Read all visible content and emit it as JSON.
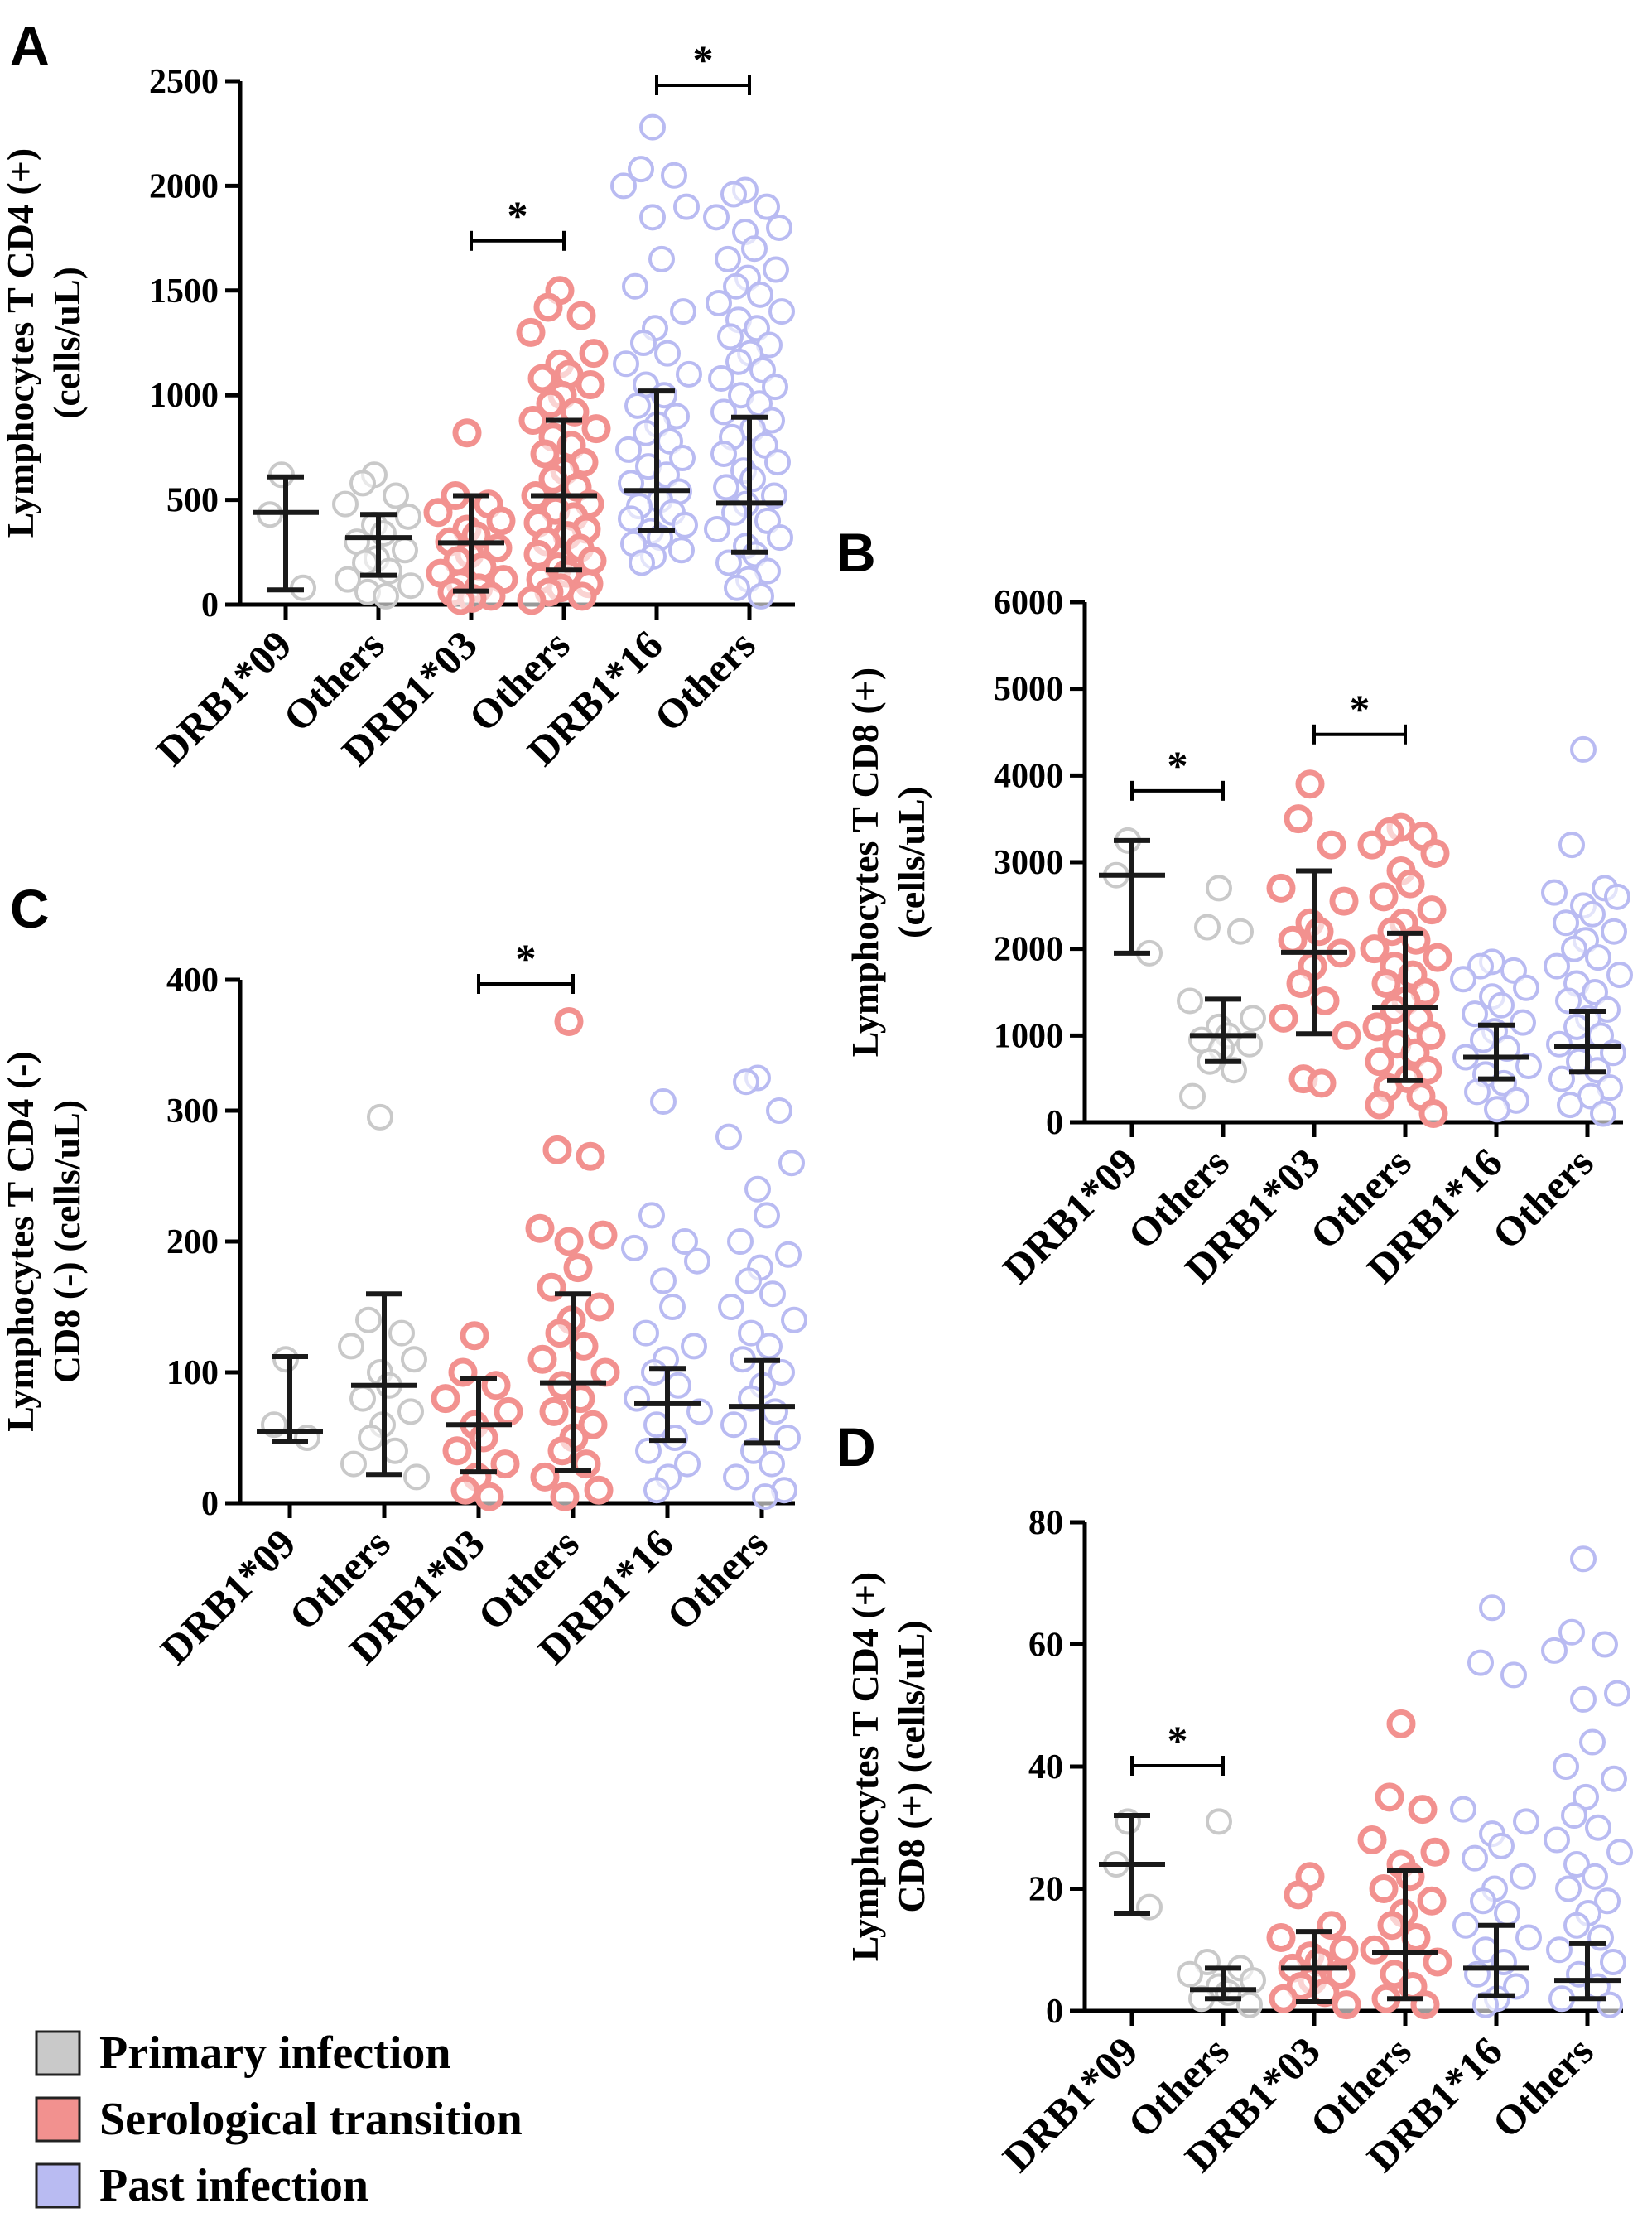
{
  "chart_data": [
    {
      "panel": "A",
      "type": "scatter",
      "ylabel_lines": [
        "Lymphocytes T CD4 (+)",
        "(cells/uL)"
      ],
      "ylim": [
        0,
        2500
      ],
      "yticks": [
        0,
        500,
        1000,
        1500,
        2000,
        2500
      ],
      "categories": [
        "DRB1*09",
        "Others",
        "DRB1*03",
        "Others",
        "DRB1*16",
        "Others"
      ],
      "groups": [
        "Primary infection",
        "Primary infection",
        "Serological transition",
        "Serological transition",
        "Past infection",
        "Past infection"
      ],
      "points": [
        [
          620,
          430,
          80
        ],
        [
          620,
          580,
          520,
          480,
          420,
          380,
          340,
          300,
          260,
          220,
          200,
          160,
          120,
          90,
          60,
          40
        ],
        [
          820,
          520,
          480,
          440,
          400,
          360,
          330,
          300,
          270,
          240,
          210,
          180,
          150,
          120,
          100,
          80,
          60,
          40,
          30,
          20
        ],
        [
          1500,
          1420,
          1380,
          1300,
          1200,
          1150,
          1100,
          1080,
          1050,
          1000,
          960,
          920,
          880,
          840,
          800,
          760,
          720,
          680,
          640,
          600,
          560,
          520,
          480,
          450,
          420,
          390,
          360,
          330,
          300,
          270,
          240,
          210,
          180,
          150,
          120,
          100,
          80,
          60,
          40,
          20
        ],
        [
          2280,
          2080,
          2050,
          2000,
          1900,
          1850,
          1650,
          1520,
          1400,
          1320,
          1250,
          1200,
          1150,
          1100,
          1050,
          1000,
          950,
          900,
          860,
          820,
          780,
          740,
          700,
          660,
          620,
          580,
          540,
          500,
          470,
          440,
          410,
          380,
          350,
          320,
          290,
          260,
          230,
          200
        ],
        [
          1980,
          1960,
          1900,
          1850,
          1800,
          1780,
          1700,
          1650,
          1600,
          1560,
          1520,
          1480,
          1440,
          1400,
          1360,
          1320,
          1280,
          1240,
          1200,
          1160,
          1120,
          1080,
          1040,
          1000,
          960,
          920,
          880,
          840,
          800,
          760,
          720,
          680,
          640,
          600,
          560,
          520,
          480,
          440,
          400,
          360,
          320,
          280,
          240,
          200,
          160,
          120,
          80,
          40
        ]
      ],
      "summary": [
        {
          "median": 440,
          "low": 70,
          "high": 610
        },
        {
          "median": 320,
          "low": 140,
          "high": 430
        },
        {
          "median": 295,
          "low": 65,
          "high": 520
        },
        {
          "median": 520,
          "low": 165,
          "high": 880
        },
        {
          "median": 545,
          "low": 355,
          "high": 1020
        },
        {
          "median": 485,
          "low": 250,
          "high": 895
        }
      ],
      "significance": [
        {
          "from": 2,
          "to": 3,
          "label": "*"
        },
        {
          "from": 4,
          "to": 5,
          "label": "*"
        }
      ]
    },
    {
      "panel": "B",
      "type": "scatter",
      "ylabel_lines": [
        "Lymphocytes T CD8 (+)",
        "(cells/uL)"
      ],
      "ylim": [
        0,
        6000
      ],
      "yticks": [
        0,
        1000,
        2000,
        3000,
        4000,
        5000,
        6000
      ],
      "categories": [
        "DRB1*09",
        "Others",
        "DRB1*03",
        "Others",
        "DRB1*16",
        "Others"
      ],
      "groups": [
        "Primary infection",
        "Primary infection",
        "Serological transition",
        "Serological transition",
        "Past infection",
        "Past infection"
      ],
      "points": [
        [
          3250,
          2850,
          1950
        ],
        [
          2700,
          2250,
          2200,
          1400,
          1200,
          1100,
          1000,
          950,
          900,
          850,
          700,
          600,
          300
        ],
        [
          3900,
          3500,
          3200,
          2700,
          2550,
          2300,
          2200,
          2100,
          1950,
          1800,
          1600,
          1400,
          1200,
          1000,
          500,
          450
        ],
        [
          3400,
          3350,
          3300,
          3200,
          3100,
          2900,
          2750,
          2600,
          2450,
          2300,
          2200,
          2100,
          2000,
          1900,
          1800,
          1700,
          1600,
          1500,
          1400,
          1300,
          1200,
          1100,
          1000,
          900,
          800,
          700,
          600,
          500,
          400,
          300,
          200,
          100
        ],
        [
          1850,
          1800,
          1750,
          1650,
          1550,
          1450,
          1350,
          1250,
          1150,
          1050,
          950,
          850,
          750,
          650,
          550,
          450,
          350,
          250,
          150
        ],
        [
          4300,
          3200,
          2700,
          2650,
          2600,
          2500,
          2400,
          2300,
          2200,
          2100,
          2000,
          1900,
          1800,
          1700,
          1600,
          1500,
          1400,
          1300,
          1200,
          1100,
          1000,
          900,
          800,
          700,
          600,
          500,
          400,
          300,
          200,
          100
        ]
      ],
      "summary": [
        {
          "median": 2850,
          "low": 1950,
          "high": 3250
        },
        {
          "median": 1000,
          "low": 700,
          "high": 1420
        },
        {
          "median": 1960,
          "low": 1020,
          "high": 2900
        },
        {
          "median": 1320,
          "low": 480,
          "high": 2180
        },
        {
          "median": 750,
          "low": 500,
          "high": 1120
        },
        {
          "median": 870,
          "low": 580,
          "high": 1280
        }
      ],
      "significance": [
        {
          "from": 0,
          "to": 1,
          "label": "*"
        },
        {
          "from": 2,
          "to": 3,
          "label": "*"
        }
      ]
    },
    {
      "panel": "C",
      "type": "scatter",
      "ylabel_lines": [
        "Lymphocytes T CD4 (-)",
        "CD8 (-) (cells/uL)"
      ],
      "ylim": [
        0,
        400
      ],
      "yticks": [
        0,
        100,
        200,
        300,
        400
      ],
      "categories": [
        "DRB1*09",
        "Others",
        "DRB1*03",
        "Others",
        "DRB1*16",
        "Others"
      ],
      "groups": [
        "Primary infection",
        "Primary infection",
        "Serological transition",
        "Serological transition",
        "Past infection",
        "Past infection"
      ],
      "points": [
        [
          110,
          60,
          50
        ],
        [
          295,
          140,
          130,
          120,
          110,
          100,
          90,
          80,
          70,
          60,
          50,
          40,
          30,
          20
        ],
        [
          128,
          100,
          90,
          80,
          70,
          60,
          50,
          40,
          30,
          20,
          10,
          5
        ],
        [
          368,
          270,
          265,
          210,
          205,
          200,
          180,
          165,
          150,
          140,
          130,
          120,
          110,
          100,
          90,
          80,
          70,
          60,
          50,
          40,
          30,
          20,
          10,
          5
        ],
        [
          307,
          220,
          200,
          195,
          185,
          170,
          150,
          130,
          120,
          110,
          100,
          90,
          80,
          70,
          60,
          50,
          40,
          30,
          20,
          10
        ],
        [
          325,
          322,
          300,
          280,
          260,
          240,
          220,
          200,
          190,
          180,
          170,
          160,
          150,
          140,
          130,
          120,
          110,
          100,
          90,
          80,
          70,
          60,
          50,
          40,
          30,
          20,
          10,
          5
        ]
      ],
      "summary": [
        {
          "median": 55,
          "low": 47,
          "high": 112
        },
        {
          "median": 90,
          "low": 22,
          "high": 160
        },
        {
          "median": 60,
          "low": 24,
          "high": 95
        },
        {
          "median": 92,
          "low": 25,
          "high": 160
        },
        {
          "median": 76,
          "low": 48,
          "high": 103
        },
        {
          "median": 74,
          "low": 46,
          "high": 109
        }
      ],
      "significance": [
        {
          "from": 2,
          "to": 3,
          "label": "*"
        }
      ]
    },
    {
      "panel": "D",
      "type": "scatter",
      "ylabel_lines": [
        "Lymphocytes T CD4 (+)",
        "CD8 (+) (cells/uL)"
      ],
      "ylim": [
        0,
        80
      ],
      "yticks": [
        0,
        20,
        40,
        60,
        80
      ],
      "categories": [
        "DRB1*09",
        "Others",
        "DRB1*03",
        "Others",
        "DRB1*16",
        "Others"
      ],
      "groups": [
        "Primary infection",
        "Primary infection",
        "Serological transition",
        "Serological transition",
        "Past infection",
        "Past infection"
      ],
      "points": [
        [
          31,
          24,
          17
        ],
        [
          31,
          8,
          7,
          6,
          5,
          4,
          3,
          2,
          1
        ],
        [
          22,
          19,
          14,
          12,
          10,
          9,
          8,
          7,
          6,
          5,
          4,
          3,
          2,
          1
        ],
        [
          47,
          35,
          33,
          28,
          26,
          24,
          22,
          20,
          18,
          16,
          14,
          12,
          10,
          8,
          6,
          4,
          2,
          1
        ],
        [
          66,
          57,
          55,
          33,
          31,
          29,
          27,
          25,
          22,
          20,
          18,
          16,
          14,
          12,
          10,
          8,
          6,
          4,
          2,
          1
        ],
        [
          74,
          62,
          60,
          59,
          52,
          51,
          44,
          40,
          38,
          35,
          32,
          30,
          28,
          26,
          24,
          22,
          20,
          18,
          16,
          14,
          12,
          10,
          8,
          6,
          4,
          2,
          1
        ]
      ],
      "summary": [
        {
          "median": 24,
          "low": 16,
          "high": 32
        },
        {
          "median": 3.5,
          "low": 2,
          "high": 7
        },
        {
          "median": 7,
          "low": 1.5,
          "high": 13
        },
        {
          "median": 9.5,
          "low": 2,
          "high": 23
        },
        {
          "median": 7,
          "low": 2.5,
          "high": 14
        },
        {
          "median": 5,
          "low": 2,
          "high": 11
        }
      ],
      "significance": [
        {
          "from": 0,
          "to": 1,
          "label": "*"
        }
      ]
    }
  ],
  "legend": [
    {
      "label": "Primary infection",
      "color": "#c9c9c9"
    },
    {
      "label": "Serological transition",
      "color": "#f2918f"
    },
    {
      "label": "Past infection",
      "color": "#b9bbf2"
    }
  ],
  "colors": {
    "Primary infection": "#c9c9c9",
    "Serological transition": "#f2918f",
    "Past infection": "#b9bbf2"
  }
}
